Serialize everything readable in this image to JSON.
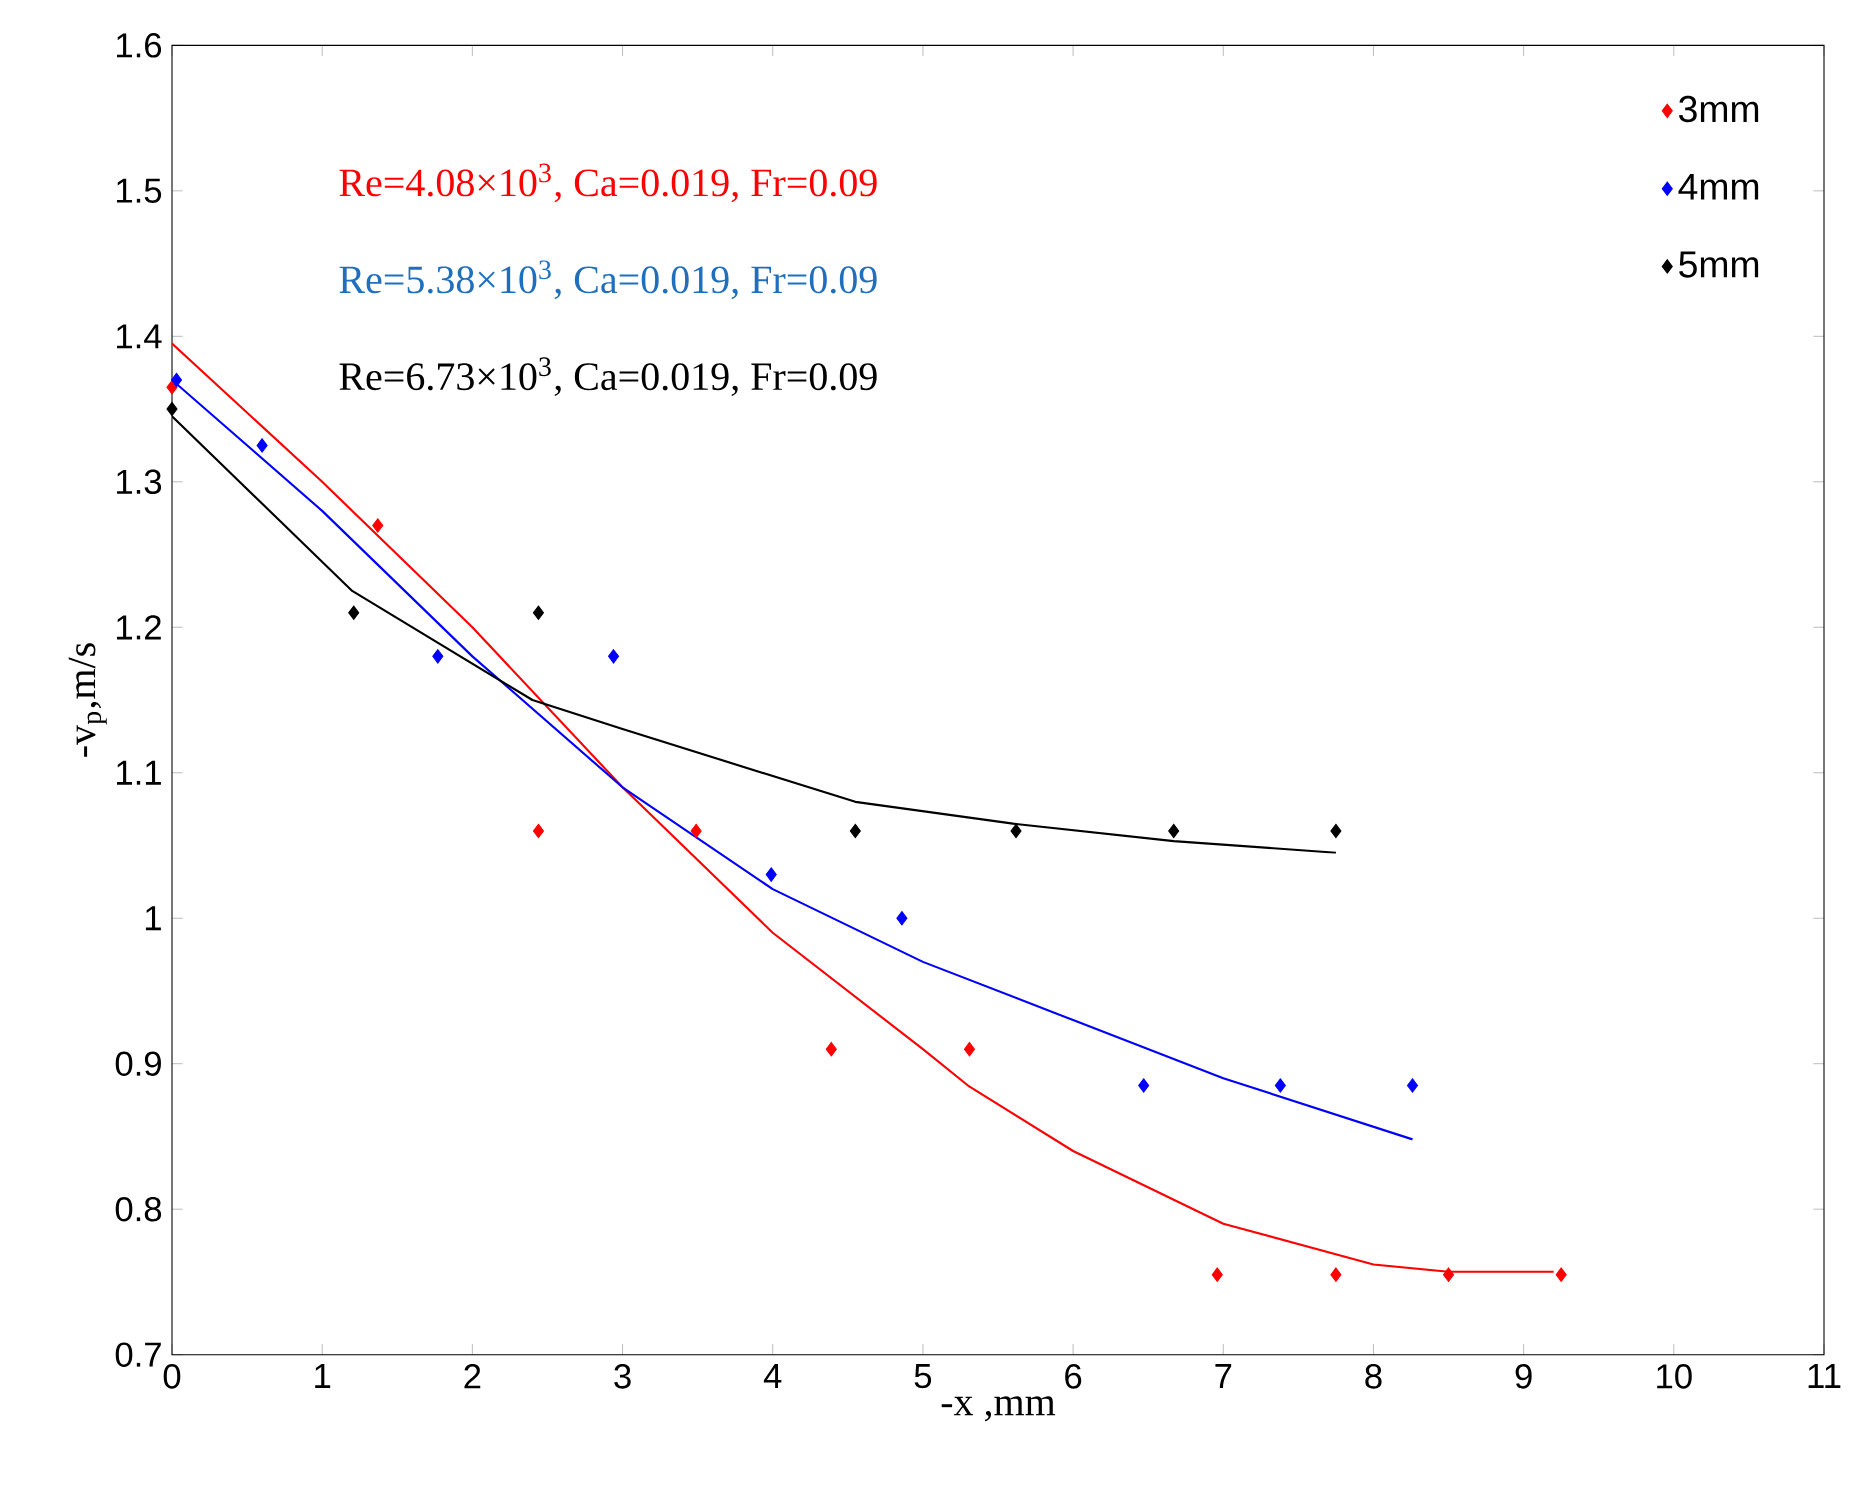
{
  "chart_data": {
    "type": "scatter",
    "xlabel": "-x ,mm",
    "ylabel": "-v$_{p}$,m/s",
    "xlim": [
      0,
      11
    ],
    "ylim": [
      0.7,
      1.6
    ],
    "xticks": [
      0,
      1,
      2,
      3,
      4,
      5,
      6,
      7,
      8,
      9,
      10,
      11
    ],
    "yticks": [
      0.7,
      0.8,
      0.9,
      1,
      1.1,
      1.2,
      1.3,
      1.4,
      1.5,
      1.6
    ],
    "grid": false,
    "legend": "top right",
    "annotations": [
      "Re=4.08×10$^{3}$, Ca=0.019, Fr=0.09",
      "Re=5.38×10$^{3}$, Ca=0.019, Fr=0.09",
      "Re=6.73×10$^{3}$, Ca=0.019, Fr=0.09"
    ],
    "series": [
      {
        "name": "3mm",
        "marker": "diamond",
        "color": "#ff0000",
        "x": [
          0,
          1.37,
          2.44,
          3.49,
          4.39,
          5.31,
          6.96,
          7.75,
          8.5,
          9.25
        ],
        "values": [
          1.365,
          1.27,
          1.06,
          1.06,
          0.91,
          0.91,
          0.755,
          0.755,
          0.755,
          0.755
        ]
      },
      {
        "name": "4mm",
        "marker": "diamond",
        "color": "#0000ff",
        "x": [
          0.03,
          0.6,
          1.77,
          2.94,
          3.99,
          4.86,
          6.47,
          7.38,
          8.26
        ],
        "values": [
          1.37,
          1.325,
          1.18,
          1.18,
          1.03,
          1.0,
          0.885,
          0.885,
          0.885
        ]
      },
      {
        "name": "5mm",
        "marker": "diamond",
        "color": "#000000",
        "x": [
          0,
          1.21,
          2.44,
          4.55,
          5.62,
          6.67,
          7.75
        ],
        "values": [
          1.35,
          1.21,
          1.21,
          1.06,
          1.06,
          1.06,
          1.06
        ]
      },
      {
        "type": "line",
        "marker": "none",
        "color": "#ff0000",
        "x": [
          0,
          1,
          2,
          3,
          4,
          5,
          5.3,
          6,
          7,
          8,
          8.5,
          9.2
        ],
        "values": [
          1.395,
          1.3,
          1.2,
          1.09,
          0.99,
          0.91,
          0.885,
          0.84,
          0.79,
          0.762,
          0.757,
          0.757
        ]
      },
      {
        "type": "line",
        "marker": "none",
        "color": "#0000ff",
        "x": [
          0,
          1,
          2,
          3,
          4,
          5,
          6,
          7,
          8.26
        ],
        "values": [
          1.37,
          1.28,
          1.18,
          1.09,
          1.02,
          0.97,
          0.93,
          0.89,
          0.848
        ]
      },
      {
        "type": "line",
        "marker": "none",
        "color": "#000000",
        "x": [
          0,
          1.2,
          2.4,
          3,
          4.55,
          5.6,
          6.67,
          7.75
        ],
        "values": [
          1.345,
          1.225,
          1.15,
          1.13,
          1.08,
          1.065,
          1.053,
          1.045
        ]
      }
    ]
  }
}
